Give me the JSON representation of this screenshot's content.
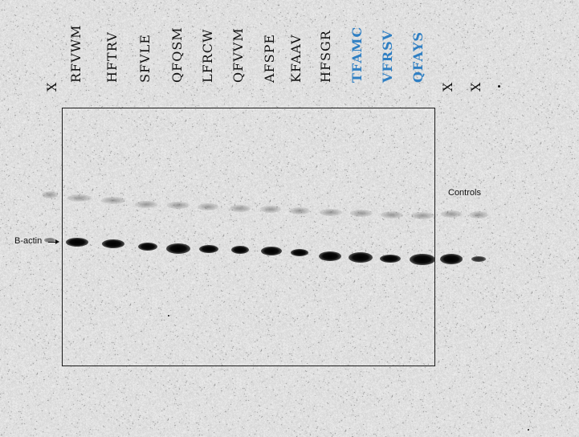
{
  "lanes": [
    {
      "label": "X",
      "highlight": false
    },
    {
      "label": "RFVWM",
      "highlight": false
    },
    {
      "label": "HFTRV",
      "highlight": false
    },
    {
      "label": "SFVLE",
      "highlight": false
    },
    {
      "label": "QFQSM",
      "highlight": false
    },
    {
      "label": "LFRCW",
      "highlight": false
    },
    {
      "label": "QFVVM",
      "highlight": false
    },
    {
      "label": "AFSPE",
      "highlight": false
    },
    {
      "label": "KFAAV",
      "highlight": false
    },
    {
      "label": "HFSGR",
      "highlight": false
    },
    {
      "label": "TFAMC",
      "highlight": true
    },
    {
      "label": "VFRSV",
      "highlight": true
    },
    {
      "label": "QFAYS",
      "highlight": true
    },
    {
      "label": "X",
      "highlight": false
    },
    {
      "label": "X",
      "highlight": false
    }
  ],
  "annotations": {
    "controls": "Controls",
    "b_actin": "B-actin"
  },
  "colors": {
    "highlight": "#2f7fc3",
    "background": "#e9e9e9"
  }
}
